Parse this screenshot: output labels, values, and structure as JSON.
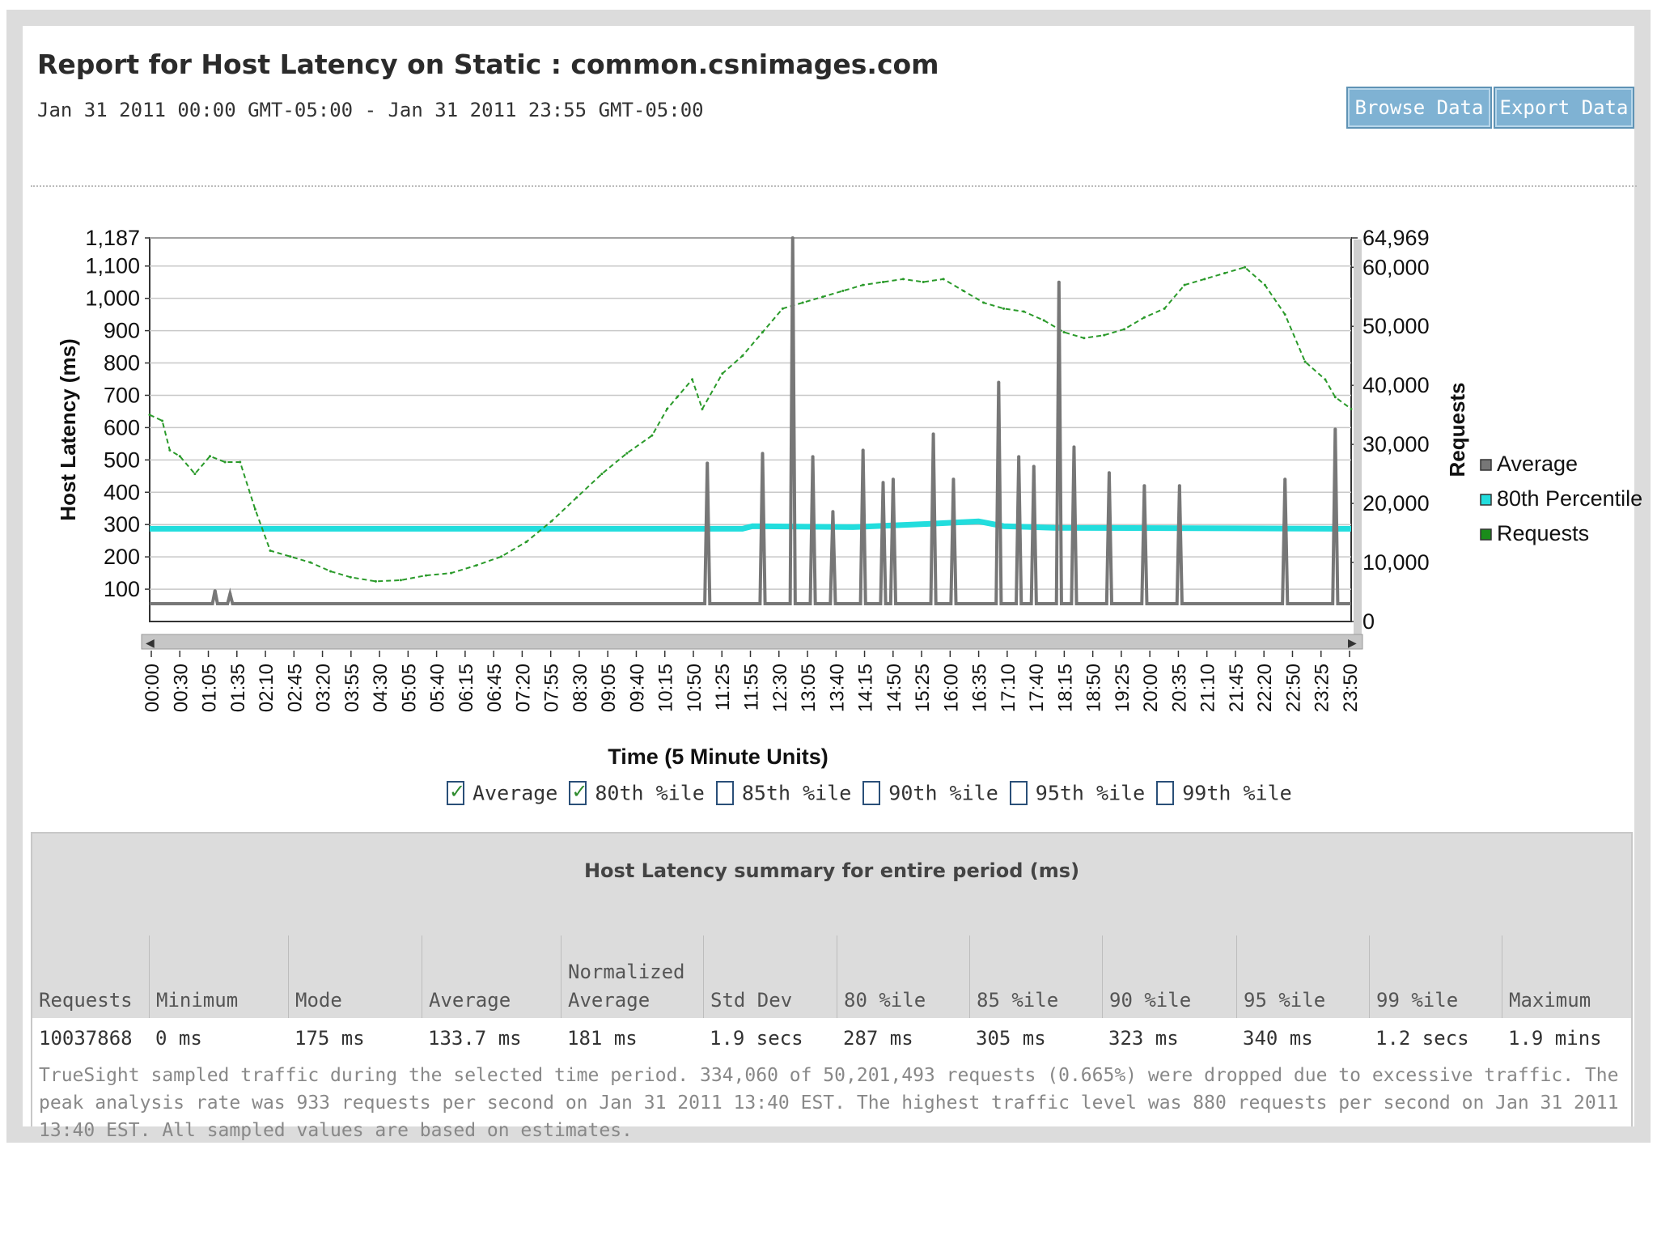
{
  "header": {
    "title": "Report for Host Latency on Static : common.csnimages.com",
    "date_range": "Jan 31 2011 00:00 GMT-05:00 - Jan 31 2011 23:55 GMT-05:00",
    "browse_label": "Browse Data",
    "export_label": "Export Data"
  },
  "chart_data": {
    "type": "line",
    "x_title": "Time (5 Minute Units)",
    "y_left_title": "Host Latency (ms)",
    "y_right_title": "Requests",
    "x_ticks": [
      "00:00",
      "00:30",
      "01:05",
      "01:35",
      "02:10",
      "02:45",
      "03:20",
      "03:55",
      "04:30",
      "05:05",
      "05:40",
      "06:15",
      "06:45",
      "07:20",
      "07:55",
      "08:30",
      "09:05",
      "09:40",
      "10:15",
      "10:50",
      "11:25",
      "11:55",
      "12:30",
      "13:05",
      "13:40",
      "14:15",
      "14:50",
      "15:25",
      "16:00",
      "16:35",
      "17:10",
      "17:40",
      "18:15",
      "18:50",
      "19:25",
      "20:00",
      "20:35",
      "21:10",
      "21:45",
      "22:20",
      "22:50",
      "23:25",
      "23:50"
    ],
    "y_left_ticks": [
      100,
      200,
      300,
      400,
      500,
      600,
      700,
      800,
      900,
      1000,
      1100,
      1187
    ],
    "y_left_tick_labels": [
      "100",
      "200",
      "300",
      "400",
      "500",
      "600",
      "700",
      "800",
      "900",
      "1,000",
      "1,100",
      "1,187"
    ],
    "y_left_range": [
      0,
      1187
    ],
    "y_right_ticks": [
      0,
      10000,
      20000,
      30000,
      40000,
      50000,
      60000,
      64969
    ],
    "y_right_tick_labels": [
      "0",
      "10,000",
      "20,000",
      "30,000",
      "40,000",
      "50,000",
      "60,000",
      "64,969"
    ],
    "y_right_range": [
      0,
      64969
    ],
    "x_range_hours": [
      0,
      23.917
    ],
    "legend": [
      {
        "name": "Average",
        "color": "#777777"
      },
      {
        "name": "80th Percentile",
        "color": "#22dddd"
      },
      {
        "name": "Requests",
        "color": "#1a8c1a"
      }
    ],
    "series": [
      {
        "name": "Requests",
        "axis": "right",
        "style": "dashed",
        "color": "#2a9a2a",
        "points": [
          [
            0,
            35000
          ],
          [
            0.25,
            34000
          ],
          [
            0.4,
            29000
          ],
          [
            0.6,
            28000
          ],
          [
            0.9,
            25000
          ],
          [
            1.2,
            28000
          ],
          [
            1.5,
            27000
          ],
          [
            1.8,
            27000
          ],
          [
            2.1,
            19000
          ],
          [
            2.4,
            12000
          ],
          [
            2.8,
            11000
          ],
          [
            3.2,
            10000
          ],
          [
            3.6,
            8500
          ],
          [
            4.0,
            7500
          ],
          [
            4.5,
            6800
          ],
          [
            5.0,
            7000
          ],
          [
            5.5,
            7800
          ],
          [
            6.0,
            8200
          ],
          [
            6.5,
            9500
          ],
          [
            7.0,
            11000
          ],
          [
            7.5,
            13500
          ],
          [
            8.0,
            17000
          ],
          [
            8.5,
            21000
          ],
          [
            9.0,
            25000
          ],
          [
            9.5,
            28500
          ],
          [
            10.0,
            31500
          ],
          [
            10.3,
            36000
          ],
          [
            10.5,
            38000
          ],
          [
            10.8,
            41000
          ],
          [
            11.0,
            36000
          ],
          [
            11.4,
            42000
          ],
          [
            11.8,
            45000
          ],
          [
            12.2,
            49000
          ],
          [
            12.6,
            53000
          ],
          [
            13.0,
            54000
          ],
          [
            13.4,
            55000
          ],
          [
            13.8,
            56000
          ],
          [
            14.2,
            57000
          ],
          [
            14.6,
            57500
          ],
          [
            15.0,
            58000
          ],
          [
            15.4,
            57500
          ],
          [
            15.8,
            58000
          ],
          [
            16.2,
            56000
          ],
          [
            16.6,
            54000
          ],
          [
            17.0,
            53000
          ],
          [
            17.4,
            52500
          ],
          [
            17.8,
            51000
          ],
          [
            18.2,
            49000
          ],
          [
            18.6,
            48000
          ],
          [
            19.0,
            48500
          ],
          [
            19.4,
            49500
          ],
          [
            19.8,
            51500
          ],
          [
            20.2,
            53000
          ],
          [
            20.6,
            57000
          ],
          [
            21.0,
            58000
          ],
          [
            21.4,
            59000
          ],
          [
            21.8,
            60000
          ],
          [
            22.2,
            57000
          ],
          [
            22.6,
            52000
          ],
          [
            23.0,
            44000
          ],
          [
            23.4,
            41000
          ],
          [
            23.6,
            38000
          ],
          [
            23.917,
            36000
          ]
        ]
      },
      {
        "name": "80th Percentile",
        "axis": "left",
        "style": "solid",
        "color": "#22dddd",
        "points": [
          [
            0,
            287
          ],
          [
            11.8,
            287
          ],
          [
            12.0,
            295
          ],
          [
            14.0,
            292
          ],
          [
            15.5,
            302
          ],
          [
            16.5,
            310
          ],
          [
            17.0,
            295
          ],
          [
            18.0,
            290
          ],
          [
            23.917,
            287
          ]
        ]
      },
      {
        "name": "Average",
        "axis": "left",
        "style": "solid",
        "color": "#777777",
        "baseline": 55,
        "spikes": [
          [
            1.3,
            95
          ],
          [
            1.6,
            85
          ],
          [
            11.1,
            490
          ],
          [
            12.2,
            520
          ],
          [
            12.8,
            1187
          ],
          [
            13.2,
            510
          ],
          [
            13.6,
            340
          ],
          [
            14.2,
            530
          ],
          [
            14.6,
            430
          ],
          [
            14.8,
            440
          ],
          [
            15.6,
            580
          ],
          [
            16.0,
            440
          ],
          [
            16.9,
            740
          ],
          [
            17.3,
            510
          ],
          [
            17.6,
            480
          ],
          [
            18.1,
            1050
          ],
          [
            18.4,
            540
          ],
          [
            19.1,
            460
          ],
          [
            19.8,
            420
          ],
          [
            20.5,
            420
          ],
          [
            22.6,
            440
          ],
          [
            23.6,
            595
          ]
        ]
      }
    ]
  },
  "percentile_toggles": [
    {
      "label": "Average",
      "checked": true
    },
    {
      "label": "80th %ile",
      "checked": true
    },
    {
      "label": "85th %ile",
      "checked": false
    },
    {
      "label": "90th %ile",
      "checked": false
    },
    {
      "label": "95th %ile",
      "checked": false
    },
    {
      "label": "99th %ile",
      "checked": false
    }
  ],
  "summary": {
    "title": "Host Latency summary for entire period (ms)",
    "columns": [
      {
        "label": [
          "Requests"
        ],
        "value": "10037868"
      },
      {
        "label": [
          "Minimum"
        ],
        "value": "0 ms"
      },
      {
        "label": [
          "Mode"
        ],
        "value": "175 ms"
      },
      {
        "label": [
          "Average"
        ],
        "value": "133.7 ms"
      },
      {
        "label": [
          "Normalized",
          "Average"
        ],
        "value": "181 ms"
      },
      {
        "label": [
          "Std Dev"
        ],
        "value": "1.9 secs"
      },
      {
        "label": [
          "80 %ile"
        ],
        "value": "287 ms"
      },
      {
        "label": [
          "85 %ile"
        ],
        "value": "305 ms"
      },
      {
        "label": [
          "90 %ile"
        ],
        "value": "323 ms"
      },
      {
        "label": [
          "95 %ile"
        ],
        "value": "340 ms"
      },
      {
        "label": [
          "99 %ile"
        ],
        "value": "1.2 secs"
      },
      {
        "label": [
          "Maximum"
        ],
        "value": "1.9 mins"
      }
    ],
    "note": "TrueSight sampled traffic during the selected time period. 334,060 of 50,201,493 requests (0.665%) were dropped due to excessive traffic. The peak analysis rate was 933 requests per second on Jan 31 2011 13:40 EST. The highest traffic level was 880 requests per second on Jan 31 2011 13:40 EST. All sampled values are based on estimates."
  }
}
